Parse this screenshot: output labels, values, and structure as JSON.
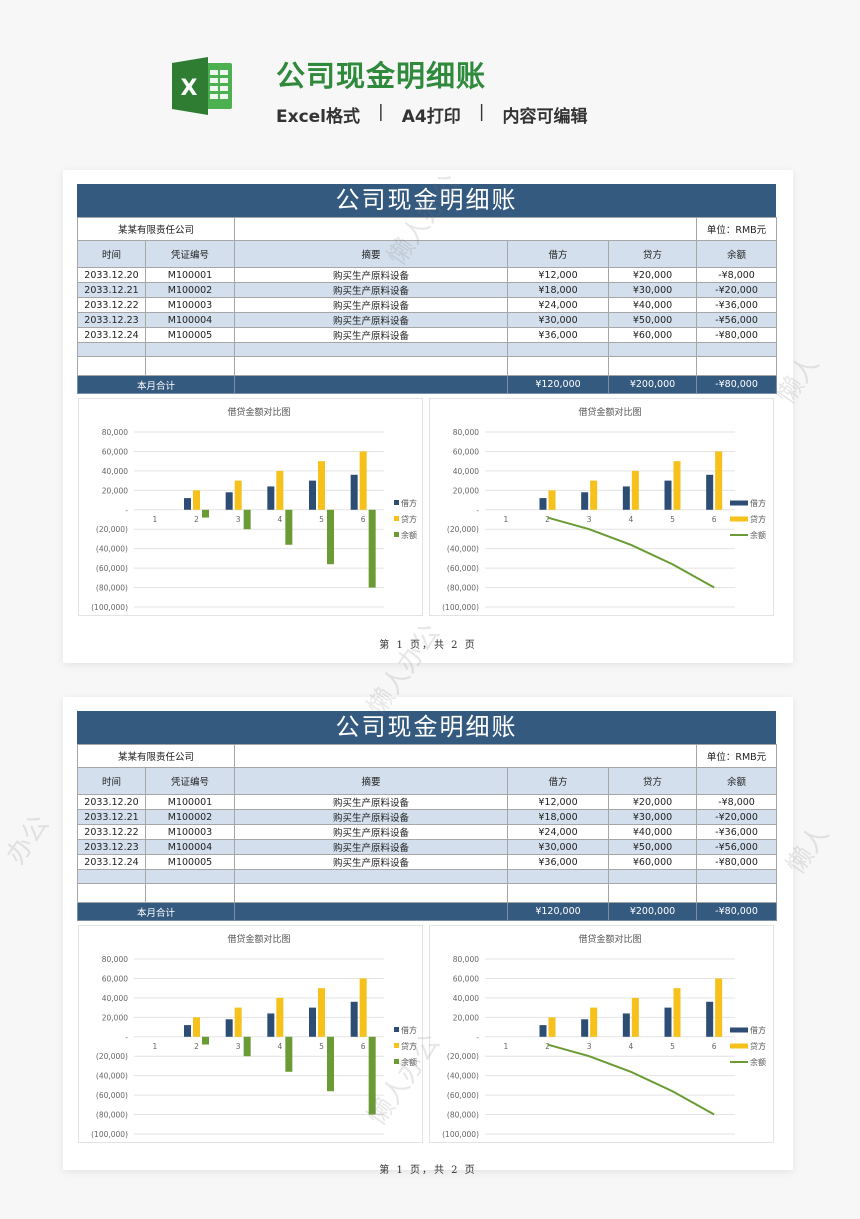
{
  "header": {
    "title": "公司现金明细账",
    "tags": [
      "Excel格式",
      "A4打印",
      "内容可编辑"
    ],
    "separator": "|",
    "logo_letter": "X"
  },
  "colors": {
    "brand_green": "#2f8a3c",
    "header_blue": "#355a80",
    "row_alt": "#d3dfec",
    "debit": "#2e4d74",
    "credit": "#f5c11a",
    "balance": "#6a9b34"
  },
  "sheet": {
    "title": "公司现金明细账",
    "company": "某某有限责任公司",
    "unit": "单位：RMB元",
    "columns": [
      "时间",
      "凭证编号",
      "摘要",
      "借方",
      "贷方",
      "余额"
    ],
    "rows": [
      [
        "2033.12.20",
        "M100001",
        "购买生产原料设备",
        "¥12,000",
        "¥20,000",
        "-¥8,000"
      ],
      [
        "2033.12.21",
        "M100002",
        "购买生产原料设备",
        "¥18,000",
        "¥30,000",
        "-¥20,000"
      ],
      [
        "2033.12.22",
        "M100003",
        "购买生产原料设备",
        "¥24,000",
        "¥40,000",
        "-¥36,000"
      ],
      [
        "2033.12.23",
        "M100004",
        "购买生产原料设备",
        "¥30,000",
        "¥50,000",
        "-¥56,000"
      ],
      [
        "2033.12.24",
        "M100005",
        "购买生产原料设备",
        "¥36,000",
        "¥60,000",
        "-¥80,000"
      ]
    ],
    "total": {
      "label": "本月合计",
      "debit": "¥120,000",
      "credit": "¥200,000",
      "balance": "-¥80,000"
    }
  },
  "pages": [
    {
      "footer": "第 1 页，共 2 页"
    },
    {
      "footer": "第 1 页，共 2 页"
    }
  ],
  "chart_data": [
    {
      "type": "bar",
      "title": "借贷金额对比图",
      "categories": [
        "1",
        "2",
        "3",
        "4",
        "5",
        "6"
      ],
      "series": [
        {
          "name": "借方",
          "values": [
            0,
            12000,
            18000,
            24000,
            30000,
            36000
          ],
          "color": "#2e4d74"
        },
        {
          "name": "贷方",
          "values": [
            0,
            20000,
            30000,
            40000,
            50000,
            60000
          ],
          "color": "#f5c11a"
        },
        {
          "name": "余额",
          "values": [
            0,
            -8000,
            -20000,
            -36000,
            -56000,
            -80000
          ],
          "color": "#6a9b34"
        }
      ],
      "yticks": [
        "80,000",
        "60,000",
        "40,000",
        "20,000",
        "-",
        "(20,000)",
        "(40,000)",
        "(60,000)",
        "(80,000)",
        "(100,000)"
      ],
      "ylim": [
        -100000,
        80000
      ],
      "xlabel": "",
      "ylabel": "",
      "grid": true,
      "legend_position": "right"
    },
    {
      "type": "bar+line",
      "title": "借贷金额对比图",
      "categories": [
        "1",
        "2",
        "3",
        "4",
        "5",
        "6"
      ],
      "series": [
        {
          "name": "借方",
          "type": "bar",
          "values": [
            0,
            12000,
            18000,
            24000,
            30000,
            36000
          ],
          "color": "#2e4d74"
        },
        {
          "name": "贷方",
          "type": "bar",
          "values": [
            0,
            20000,
            30000,
            40000,
            50000,
            60000
          ],
          "color": "#f5c11a"
        },
        {
          "name": "余额",
          "type": "line",
          "values": [
            null,
            -8000,
            -20000,
            -36000,
            -56000,
            -80000
          ],
          "color": "#6a9b34"
        }
      ],
      "yticks": [
        "80,000",
        "60,000",
        "40,000",
        "20,000",
        "-",
        "(20,000)",
        "(40,000)",
        "(60,000)",
        "(80,000)",
        "(100,000)"
      ],
      "ylim": [
        -100000,
        80000
      ],
      "xlabel": "",
      "ylabel": "",
      "grid": true,
      "legend_position": "right"
    }
  ]
}
